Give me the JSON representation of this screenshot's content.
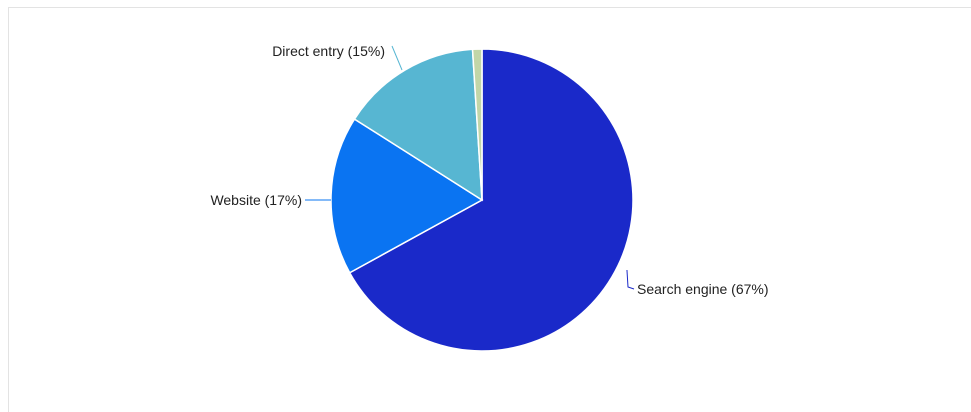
{
  "chart_data": {
    "type": "pie",
    "slices": [
      {
        "label": "Search engine (67%)",
        "value": 67,
        "color": "#1a29c9"
      },
      {
        "label": "Website (17%)",
        "value": 17,
        "color": "#0a74f2"
      },
      {
        "label": "Direct entry (15%)",
        "value": 15,
        "color": "#57b6d2"
      },
      {
        "label": "",
        "value": 1,
        "color": "#c2d6a8"
      }
    ],
    "start": "12 o'clock",
    "direction": "clockwise",
    "legend": "none",
    "labels": "outside with leader lines"
  }
}
